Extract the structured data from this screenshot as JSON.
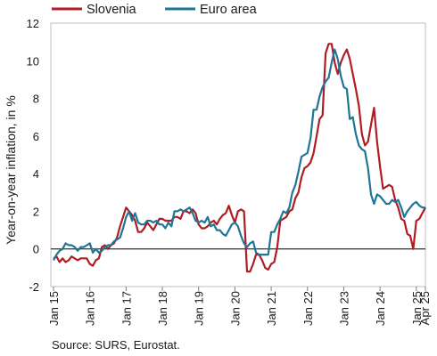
{
  "chart_data": {
    "type": "line",
    "title": "",
    "xlabel": "",
    "ylabel": "Year-on-year inflation, in %",
    "source": "Source: SURS, Eurostat.",
    "ylim": [
      -2,
      12
    ],
    "yticks": [
      "-2",
      "0",
      "2",
      "4",
      "6",
      "8",
      "10",
      "12"
    ],
    "xticks": [
      {
        "label": "Jan 15",
        "x": "2015-01"
      },
      {
        "label": "Jan 16",
        "x": "2016-01"
      },
      {
        "label": "Jan 17",
        "x": "2017-01"
      },
      {
        "label": "Jan 18",
        "x": "2018-01"
      },
      {
        "label": "Jan 19",
        "x": "2019-01"
      },
      {
        "label": "Jan 20",
        "x": "2020-01"
      },
      {
        "label": "Jan 21",
        "x": "2021-01"
      },
      {
        "label": "Jan 22",
        "x": "2022-01"
      },
      {
        "label": "Jan 23",
        "x": "2023-01"
      },
      {
        "label": "Jan 24",
        "x": "2024-01"
      },
      {
        "label": "Jan 25",
        "x": "2025-01"
      },
      {
        "label": "Apr 25",
        "x": "2025-04"
      }
    ],
    "grid": false,
    "legend": "top",
    "series": [
      {
        "name": "Slovenia",
        "color": "#b01c24",
        "x": [
          "2015-01",
          "2015-02",
          "2015-03",
          "2015-04",
          "2015-05",
          "2015-06",
          "2015-07",
          "2015-08",
          "2015-09",
          "2015-10",
          "2015-11",
          "2015-12",
          "2016-01",
          "2016-02",
          "2016-03",
          "2016-04",
          "2016-05",
          "2016-06",
          "2016-07",
          "2016-08",
          "2016-09",
          "2016-10",
          "2016-11",
          "2016-12",
          "2017-01",
          "2017-02",
          "2017-03",
          "2017-04",
          "2017-05",
          "2017-06",
          "2017-07",
          "2017-08",
          "2017-09",
          "2017-10",
          "2017-11",
          "2017-12",
          "2018-01",
          "2018-02",
          "2018-03",
          "2018-04",
          "2018-05",
          "2018-06",
          "2018-07",
          "2018-08",
          "2018-09",
          "2018-10",
          "2018-11",
          "2018-12",
          "2019-01",
          "2019-02",
          "2019-03",
          "2019-04",
          "2019-05",
          "2019-06",
          "2019-07",
          "2019-08",
          "2019-09",
          "2019-10",
          "2019-11",
          "2019-12",
          "2020-01",
          "2020-02",
          "2020-03",
          "2020-04",
          "2020-05",
          "2020-06",
          "2020-07",
          "2020-08",
          "2020-09",
          "2020-10",
          "2020-11",
          "2020-12",
          "2021-01",
          "2021-02",
          "2021-03",
          "2021-04",
          "2021-05",
          "2021-06",
          "2021-07",
          "2021-08",
          "2021-09",
          "2021-10",
          "2021-11",
          "2021-12",
          "2022-01",
          "2022-02",
          "2022-03",
          "2022-04",
          "2022-05",
          "2022-06",
          "2022-07",
          "2022-08",
          "2022-09",
          "2022-10",
          "2022-11",
          "2022-12",
          "2023-01",
          "2023-02",
          "2023-03",
          "2023-04",
          "2023-05",
          "2023-06",
          "2023-07",
          "2023-08",
          "2023-09",
          "2023-10",
          "2023-11",
          "2023-12",
          "2024-01",
          "2024-02",
          "2024-03",
          "2024-04",
          "2024-05",
          "2024-06",
          "2024-07",
          "2024-08",
          "2024-09",
          "2024-10",
          "2024-11",
          "2024-12",
          "2025-01",
          "2025-02",
          "2025-03",
          "2025-04"
        ],
        "values": [
          -0.5,
          -0.4,
          -0.7,
          -0.5,
          -0.7,
          -0.6,
          -0.4,
          -0.5,
          -0.6,
          -0.5,
          -0.5,
          -0.5,
          -0.8,
          -0.9,
          -0.6,
          -0.5,
          0.1,
          0.2,
          0.0,
          0.2,
          0.3,
          0.6,
          1.2,
          1.7,
          2.2,
          2.0,
          1.8,
          1.5,
          0.9,
          0.9,
          1.1,
          1.4,
          1.2,
          1.0,
          1.3,
          1.6,
          1.6,
          1.5,
          1.5,
          1.5,
          1.7,
          1.7,
          1.6,
          2.0,
          2.0,
          1.9,
          2.1,
          1.9,
          1.3,
          1.1,
          1.1,
          1.2,
          1.4,
          1.5,
          1.3,
          1.6,
          1.8,
          1.9,
          2.3,
          1.8,
          1.4,
          2.0,
          2.1,
          2.0,
          -1.2,
          -1.2,
          -0.8,
          -0.3,
          -0.3,
          -0.6,
          -1.0,
          -1.1,
          -0.8,
          -0.7,
          0.1,
          1.5,
          1.6,
          1.7,
          2.0,
          2.1,
          2.7,
          3.0,
          3.8,
          4.3,
          4.4,
          4.6,
          5.1,
          6.0,
          6.9,
          7.1,
          10.4,
          10.9,
          10.9,
          9.9,
          9.3,
          9.9,
          10.3,
          10.6,
          10.1,
          9.3,
          8.5,
          7.6,
          6.1,
          5.5,
          5.7,
          6.6,
          7.5,
          5.7,
          4.4,
          3.2,
          3.3,
          3.4,
          3.3,
          2.6,
          2.2,
          1.6,
          1.5,
          0.8,
          0.7,
          0.0,
          1.5,
          1.6,
          1.9,
          2.2
        ]
      },
      {
        "name": "Euro area",
        "color": "#1f7595",
        "x": [
          "2015-01",
          "2015-02",
          "2015-03",
          "2015-04",
          "2015-05",
          "2015-06",
          "2015-07",
          "2015-08",
          "2015-09",
          "2015-10",
          "2015-11",
          "2015-12",
          "2016-01",
          "2016-02",
          "2016-03",
          "2016-04",
          "2016-05",
          "2016-06",
          "2016-07",
          "2016-08",
          "2016-09",
          "2016-10",
          "2016-11",
          "2016-12",
          "2017-01",
          "2017-02",
          "2017-03",
          "2017-04",
          "2017-05",
          "2017-06",
          "2017-07",
          "2017-08",
          "2017-09",
          "2017-10",
          "2017-11",
          "2017-12",
          "2018-01",
          "2018-02",
          "2018-03",
          "2018-04",
          "2018-05",
          "2018-06",
          "2018-07",
          "2018-08",
          "2018-09",
          "2018-10",
          "2018-11",
          "2018-12",
          "2019-01",
          "2019-02",
          "2019-03",
          "2019-04",
          "2019-05",
          "2019-06",
          "2019-07",
          "2019-08",
          "2019-09",
          "2019-10",
          "2019-11",
          "2019-12",
          "2020-01",
          "2020-02",
          "2020-03",
          "2020-04",
          "2020-05",
          "2020-06",
          "2020-07",
          "2020-08",
          "2020-09",
          "2020-10",
          "2020-11",
          "2020-12",
          "2021-01",
          "2021-02",
          "2021-03",
          "2021-04",
          "2021-05",
          "2021-06",
          "2021-07",
          "2021-08",
          "2021-09",
          "2021-10",
          "2021-11",
          "2021-12",
          "2022-01",
          "2022-02",
          "2022-03",
          "2022-04",
          "2022-05",
          "2022-06",
          "2022-07",
          "2022-08",
          "2022-09",
          "2022-10",
          "2022-11",
          "2022-12",
          "2023-01",
          "2023-02",
          "2023-03",
          "2023-04",
          "2023-05",
          "2023-06",
          "2023-07",
          "2023-08",
          "2023-09",
          "2023-10",
          "2023-11",
          "2023-12",
          "2024-01",
          "2024-02",
          "2024-03",
          "2024-04",
          "2024-05",
          "2024-06",
          "2024-07",
          "2024-08",
          "2024-09",
          "2024-10",
          "2024-11",
          "2024-12",
          "2025-01",
          "2025-02",
          "2025-03",
          "2025-04"
        ],
        "values": [
          -0.6,
          -0.3,
          -0.1,
          0.0,
          0.3,
          0.2,
          0.2,
          0.1,
          -0.1,
          0.1,
          0.1,
          0.2,
          0.3,
          -0.2,
          0.0,
          -0.2,
          -0.1,
          0.1,
          0.2,
          0.2,
          0.4,
          0.5,
          0.6,
          1.1,
          1.7,
          2.0,
          1.5,
          1.9,
          1.4,
          1.3,
          1.3,
          1.5,
          1.5,
          1.4,
          1.5,
          1.3,
          1.3,
          1.1,
          1.4,
          1.2,
          2.0,
          2.0,
          2.1,
          2.0,
          2.1,
          2.2,
          1.9,
          1.5,
          1.4,
          1.5,
          1.4,
          1.7,
          1.2,
          1.3,
          1.0,
          1.0,
          0.8,
          0.7,
          1.0,
          1.3,
          1.4,
          1.2,
          0.7,
          0.3,
          0.1,
          0.3,
          0.4,
          -0.2,
          -0.3,
          -0.3,
          -0.3,
          -0.3,
          0.9,
          0.9,
          1.3,
          1.6,
          2.0,
          1.9,
          2.2,
          3.0,
          3.4,
          4.1,
          4.9,
          5.0,
          5.1,
          5.9,
          7.4,
          7.4,
          8.1,
          8.6,
          8.9,
          9.1,
          9.9,
          10.6,
          10.1,
          9.2,
          8.6,
          8.5,
          6.9,
          7.0,
          6.1,
          5.5,
          5.3,
          5.2,
          4.3,
          2.9,
          2.4,
          2.9,
          2.8,
          2.6,
          2.4,
          2.4,
          2.6,
          2.5,
          2.6,
          2.2,
          1.7,
          2.0,
          2.2,
          2.4,
          2.5,
          2.3,
          2.2,
          2.2
        ]
      }
    ]
  }
}
